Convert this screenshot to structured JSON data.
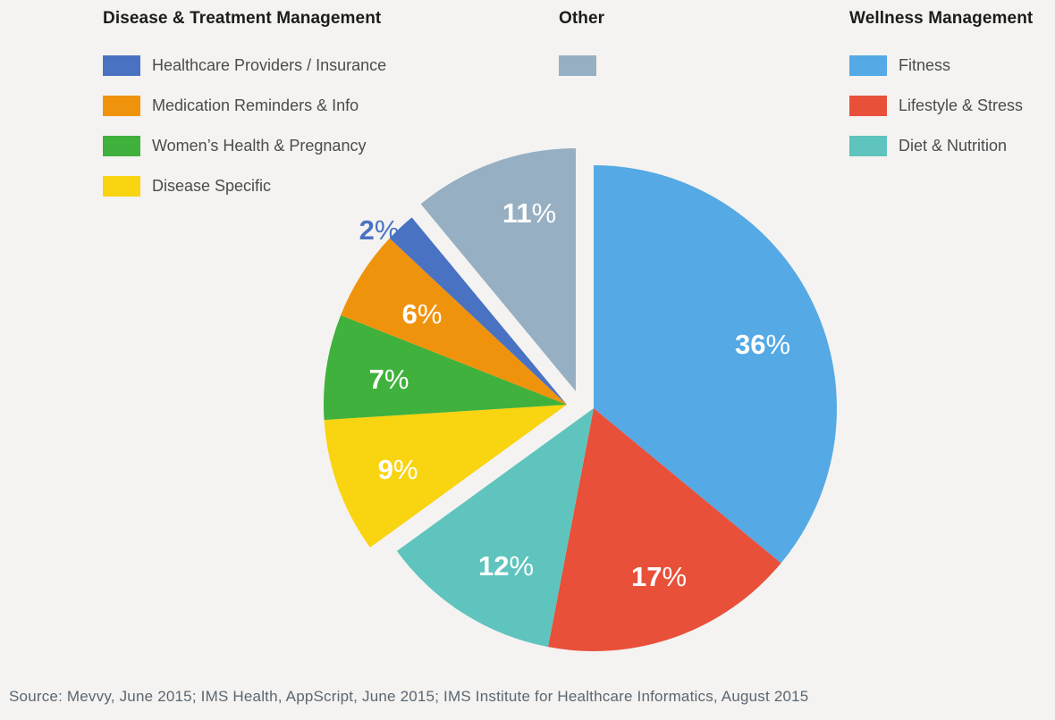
{
  "colors": {
    "background": "#f4f3f1",
    "fitness": "#55a9e4",
    "lifestyle_stress": "#e8503a",
    "diet_nutrition": "#5ec4bd",
    "disease_specific": "#f9d410",
    "womens_health": "#3fb13c",
    "medication": "#f0930c",
    "healthcare_providers": "#4a72c3",
    "other": "#96afc2"
  },
  "legend_groups": [
    {
      "title": "Disease & Treatment Management",
      "items": [
        {
          "label": "Healthcare Providers / Insurance",
          "color": "#4a72c3"
        },
        {
          "label": "Medication Reminders & Info",
          "color": "#f0930c"
        },
        {
          "label": "Women’s Health & Pregnancy",
          "color": "#3fb13c"
        },
        {
          "label": "Disease Specific",
          "color": "#f9d410"
        }
      ]
    },
    {
      "title": "Other",
      "items": [
        {
          "label": "",
          "color": "#96afc2"
        }
      ]
    },
    {
      "title": "Wellness Management",
      "items": [
        {
          "label": "Fitness",
          "color": "#55a9e4"
        },
        {
          "label": "Lifestyle & Stress",
          "color": "#e8503a"
        },
        {
          "label": "Diet & Nutrition",
          "color": "#5ec4bd"
        }
      ]
    }
  ],
  "chart_data": {
    "type": "pie",
    "start_angle_deg": 0,
    "direction": "clockwise",
    "unit": "%",
    "slices": [
      {
        "label": "Fitness",
        "value": 36,
        "color": "#55a9e4",
        "group": "Wellness Management"
      },
      {
        "label": "Lifestyle & Stress",
        "value": 17,
        "color": "#e8503a",
        "group": "Wellness Management"
      },
      {
        "label": "Diet & Nutrition",
        "value": 12,
        "color": "#5ec4bd",
        "group": "Wellness Management"
      },
      {
        "label": "Disease Specific",
        "value": 9,
        "color": "#f9d410",
        "group": "Disease & Treatment Management"
      },
      {
        "label": "Women’s Health & Pregnancy",
        "value": 7,
        "color": "#3fb13c",
        "group": "Disease & Treatment Management"
      },
      {
        "label": "Medication Reminders & Info",
        "value": 6,
        "color": "#f0930c",
        "group": "Disease & Treatment Management"
      },
      {
        "label": "Healthcare Providers / Insurance",
        "value": 2,
        "color": "#4a72c3",
        "group": "Disease & Treatment Management"
      },
      {
        "label": "Other",
        "value": 11,
        "color": "#96afc2",
        "group": "Other"
      }
    ],
    "exploded_groups": [
      "Disease & Treatment Management",
      "Other"
    ],
    "legend_position": "top"
  },
  "source": "Source: Mevvy, June 2015; IMS Health, AppScript, June 2015; IMS Institute for Healthcare Informatics, August 2015"
}
